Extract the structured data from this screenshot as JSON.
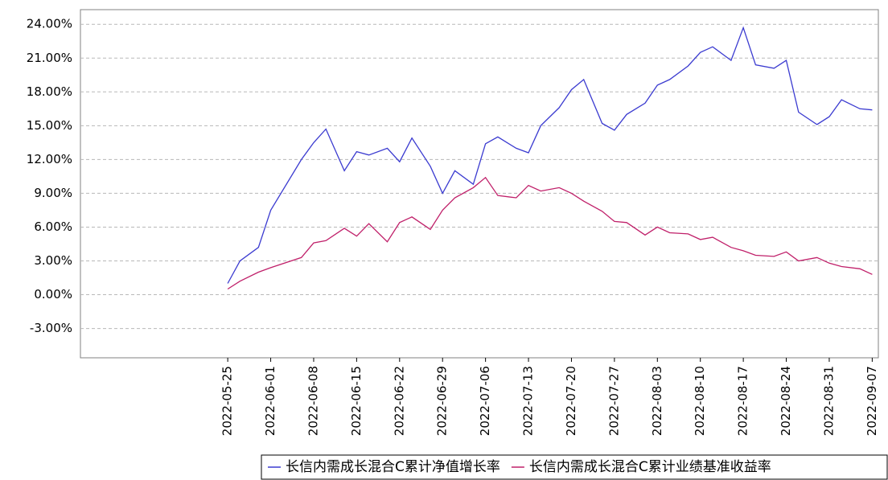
{
  "chart_data": {
    "type": "line",
    "x": [
      "2022-05-25",
      "2022-05-27",
      "2022-05-30",
      "2022-06-01",
      "2022-06-06",
      "2022-06-08",
      "2022-06-10",
      "2022-06-13",
      "2022-06-15",
      "2022-06-17",
      "2022-06-20",
      "2022-06-22",
      "2022-06-24",
      "2022-06-27",
      "2022-06-29",
      "2022-07-01",
      "2022-07-04",
      "2022-07-06",
      "2022-07-08",
      "2022-07-11",
      "2022-07-13",
      "2022-07-15",
      "2022-07-18",
      "2022-07-20",
      "2022-07-22",
      "2022-07-25",
      "2022-07-27",
      "2022-07-29",
      "2022-08-01",
      "2022-08-03",
      "2022-08-05",
      "2022-08-08",
      "2022-08-10",
      "2022-08-12",
      "2022-08-15",
      "2022-08-17",
      "2022-08-19",
      "2022-08-22",
      "2022-08-24",
      "2022-08-26",
      "2022-08-29",
      "2022-08-31",
      "2022-09-02",
      "2022-09-05",
      "2022-09-07"
    ],
    "series": [
      {
        "name": "长信内需成长混合C累计净值增长率",
        "color": "#3b3bd0",
        "values": [
          1.0,
          3.0,
          4.2,
          7.5,
          12.0,
          13.5,
          14.7,
          11.0,
          12.7,
          12.4,
          13.0,
          11.8,
          13.9,
          11.4,
          9.0,
          11.0,
          9.8,
          13.4,
          14.0,
          13.0,
          12.6,
          15.0,
          16.6,
          18.2,
          19.1,
          15.2,
          14.6,
          16.0,
          17.0,
          18.6,
          19.1,
          20.3,
          21.5,
          22.0,
          20.8,
          23.7,
          20.4,
          20.1,
          20.8,
          16.2,
          15.1,
          15.8,
          17.3,
          16.5,
          16.4
        ]
      },
      {
        "name": "长信内需成长混合C累计业绩基准收益率",
        "color": "#c0206a",
        "values": [
          0.5,
          1.2,
          2.0,
          2.4,
          3.3,
          4.6,
          4.8,
          5.9,
          5.2,
          6.3,
          4.7,
          6.4,
          6.9,
          5.8,
          7.5,
          8.6,
          9.5,
          10.4,
          8.8,
          8.6,
          9.7,
          9.2,
          9.5,
          9.0,
          8.3,
          7.4,
          6.5,
          6.4,
          5.3,
          6.0,
          5.5,
          5.4,
          4.9,
          5.1,
          4.2,
          3.9,
          3.5,
          3.4,
          3.8,
          3.0,
          3.3,
          2.8,
          2.5,
          2.3,
          1.8
        ]
      }
    ],
    "xlim": [
      "2022-05-01",
      "2022-09-08"
    ],
    "xticks": [
      "2022-05-25",
      "2022-06-01",
      "2022-06-08",
      "2022-06-15",
      "2022-06-22",
      "2022-06-29",
      "2022-07-06",
      "2022-07-13",
      "2022-07-20",
      "2022-07-27",
      "2022-08-03",
      "2022-08-10",
      "2022-08-17",
      "2022-08-24",
      "2022-08-31",
      "2022-09-07"
    ],
    "ylim": [
      -5.6,
      25.3
    ],
    "yticks": [
      {
        "value": -3,
        "label": "-3.00%"
      },
      {
        "value": 0,
        "label": "0.00%"
      },
      {
        "value": 3,
        "label": "3.00%"
      },
      {
        "value": 6,
        "label": "6.00%"
      },
      {
        "value": 9,
        "label": "9.00%"
      },
      {
        "value": 12,
        "label": "12.00%"
      },
      {
        "value": 15,
        "label": "15.00%"
      },
      {
        "value": 18,
        "label": "18.00%"
      },
      {
        "value": 21,
        "label": "21.00%"
      },
      {
        "value": 24,
        "label": "24.00%"
      }
    ],
    "grid": true
  }
}
